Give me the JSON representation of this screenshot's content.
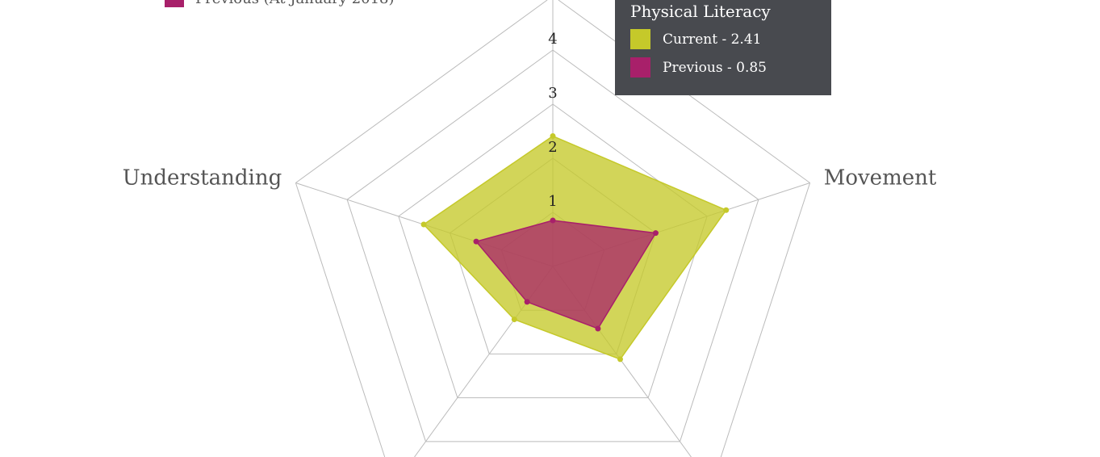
{
  "chart_data": {
    "type": "radar",
    "axes": [
      "Physical Literacy",
      "Movement",
      "",
      "",
      "Understanding"
    ],
    "rmax": 5,
    "ticks": [
      1,
      2,
      3,
      4
    ],
    "grid": true,
    "series": [
      {
        "name": "Current",
        "color": "#c5c92a",
        "values": [
          2.41,
          3.37,
          2.12,
          1.21,
          2.51
        ]
      },
      {
        "name": "Previous (At January 2018)",
        "color": "#a8206a",
        "values": [
          0.85,
          2.0,
          1.42,
          0.81,
          1.49
        ]
      }
    ],
    "legend": {
      "placement": "top-left",
      "visible_label": "Previous (At January 2018)"
    },
    "tooltip": {
      "title": "Physical Literacy",
      "rows": [
        {
          "label": "Current - 2.41",
          "color": "#c5c92a"
        },
        {
          "label": "Previous - 0.85",
          "color": "#a8206a"
        }
      ]
    }
  }
}
